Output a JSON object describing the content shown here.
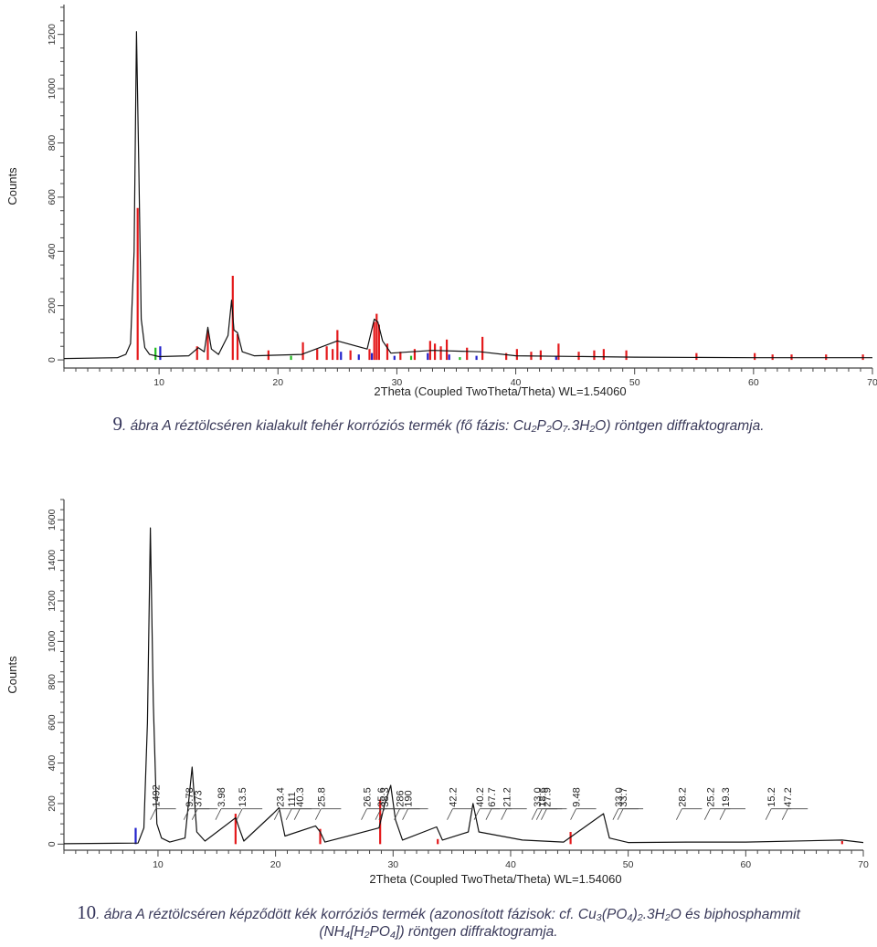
{
  "chart_data": [
    {
      "type": "line",
      "title": "",
      "xlabel": "2Theta (Coupled TwoTheta/Theta) WL=1.54060",
      "ylabel": "Counts",
      "xlim": [
        2,
        70
      ],
      "ylim": [
        -30,
        1310
      ],
      "x_ticks": [
        "10",
        "20",
        "30",
        "40",
        "50",
        "60",
        "70"
      ],
      "y_ticks": [
        "0",
        "200",
        "400",
        "600",
        "800",
        "1000",
        "1200"
      ],
      "grid": false,
      "series": [
        {
          "x": [
            2,
            6.5,
            7.2,
            7.6,
            7.9,
            8.1,
            8.3,
            8.5,
            8.8,
            9.2,
            10,
            12.5,
            13.3,
            13.8,
            14.1,
            14.4,
            15,
            15.8,
            16.1,
            16.3,
            16.6,
            17,
            18,
            22,
            25,
            27.5,
            28.1,
            28.4,
            28.8,
            29.5,
            33,
            37,
            40,
            50,
            60,
            70
          ],
          "y": [
            5,
            8,
            20,
            60,
            400,
            1210,
            700,
            150,
            45,
            20,
            12,
            15,
            45,
            30,
            120,
            40,
            20,
            90,
            220,
            110,
            100,
            30,
            15,
            20,
            70,
            40,
            150,
            140,
            70,
            25,
            35,
            30,
            15,
            10,
            8,
            8
          ]
        }
      ],
      "reference_phases": [
        {
          "color": "#e41a1c",
          "x": [
            8.2,
            13.2,
            14.1,
            16.2,
            16.6,
            19.2,
            22.1,
            23.3,
            24.1,
            24.6,
            25.0,
            26.1,
            27.7,
            28.1,
            28.3,
            28.5,
            29.2,
            30.3,
            31.5,
            32.8,
            33.2,
            33.7,
            34.2,
            35.9,
            37.2,
            39.2,
            40.1,
            41.3,
            42.1,
            43.6,
            45.3,
            46.6,
            47.4,
            49.3,
            55.2,
            60.1,
            61.6,
            63.2,
            66.1,
            69.2
          ],
          "y": [
            560,
            50,
            110,
            310,
            95,
            35,
            65,
            40,
            50,
            40,
            110,
            35,
            40,
            140,
            170,
            130,
            60,
            30,
            40,
            70,
            60,
            50,
            75,
            45,
            85,
            25,
            40,
            30,
            35,
            60,
            30,
            35,
            40,
            35,
            25,
            25,
            20,
            20,
            20,
            20
          ]
        },
        {
          "color": "#2222cc",
          "x": [
            10.1,
            25.3,
            26.8,
            27.9,
            29.8,
            32.6,
            34.4,
            36.7,
            43.4
          ],
          "y": [
            50,
            30,
            20,
            25,
            15,
            25,
            20,
            15,
            15
          ]
        },
        {
          "color": "#22bb22",
          "x": [
            9.7,
            21.1,
            31.2,
            35.3
          ],
          "y": [
            45,
            15,
            15,
            10
          ]
        }
      ]
    },
    {
      "type": "line",
      "title": "",
      "xlabel": "2Theta (Coupled TwoTheta/Theta) WL=1.54060",
      "ylabel": "Counts",
      "xlim": [
        2,
        70
      ],
      "ylim": [
        -30,
        1700
      ],
      "x_ticks": [
        "10",
        "20",
        "30",
        "40",
        "50",
        "60",
        "70"
      ],
      "y_ticks": [
        "0",
        "200",
        "400",
        "600",
        "800",
        "1000",
        "1200",
        "1400",
        "1600"
      ],
      "grid": false,
      "series": [
        {
          "x": [
            2,
            8.3,
            8.8,
            9.1,
            9.35,
            9.6,
            9.9,
            10.3,
            11,
            12.3,
            12.9,
            13.3,
            14,
            16.6,
            16.9,
            17.3,
            19.8,
            20.3,
            20.8,
            23.4,
            23.8,
            24.2,
            28.8,
            29.3,
            29.8,
            30.2,
            30.8,
            33.7,
            34.2,
            36.4,
            36.8,
            37.3,
            41,
            44.5,
            47.9,
            48.4,
            50,
            55,
            60,
            68.2,
            70
          ],
          "y": [
            2,
            5,
            80,
            600,
            1560,
            700,
            100,
            30,
            10,
            30,
            380,
            60,
            15,
            130,
            80,
            15,
            150,
            180,
            40,
            90,
            60,
            10,
            80,
            200,
            290,
            120,
            20,
            85,
            20,
            60,
            200,
            60,
            20,
            10,
            150,
            30,
            8,
            10,
            10,
            20,
            8
          ]
        }
      ],
      "peak_labels": [
        {
          "x": 9.35,
          "label": "1492"
        },
        {
          "x": 12.9,
          "label": "373"
        },
        {
          "x": 12.2,
          "label": "9.78"
        },
        {
          "x": 14.9,
          "label": "3.98"
        },
        {
          "x": 16.7,
          "label": "13.5"
        },
        {
          "x": 19.9,
          "label": "23.4"
        },
        {
          "x": 20.9,
          "label": "111"
        },
        {
          "x": 21.6,
          "label": "40.3"
        },
        {
          "x": 23.4,
          "label": "25.8"
        },
        {
          "x": 27.3,
          "label": "26.5"
        },
        {
          "x": 28.5,
          "label": "35.6"
        },
        {
          "x": 28.8,
          "label": "38.3"
        },
        {
          "x": 30.1,
          "label": "286"
        },
        {
          "x": 30.8,
          "label": "190"
        },
        {
          "x": 34.6,
          "label": "42.2"
        },
        {
          "x": 36.9,
          "label": "40.2"
        },
        {
          "x": 37.9,
          "label": "67.7"
        },
        {
          "x": 39.2,
          "label": "21.2"
        },
        {
          "x": 41.8,
          "label": "33.0"
        },
        {
          "x": 42.2,
          "label": "18.6"
        },
        {
          "x": 42.6,
          "label": "27.9"
        },
        {
          "x": 45.1,
          "label": "9.48"
        },
        {
          "x": 48.7,
          "label": "33.0"
        },
        {
          "x": 49.1,
          "label": "33.7"
        },
        {
          "x": 54.1,
          "label": "28.2"
        },
        {
          "x": 56.5,
          "label": "25.2"
        },
        {
          "x": 57.8,
          "label": "19.3"
        },
        {
          "x": 61.7,
          "label": "15.2"
        },
        {
          "x": 63.1,
          "label": "47.2"
        }
      ],
      "reference_phases": [
        {
          "color": "#e41a1c",
          "x": [
            16.6,
            23.8,
            28.9,
            33.8,
            45.1,
            68.2
          ],
          "y": [
            150,
            75,
            220,
            25,
            60,
            15
          ]
        },
        {
          "color": "#2222cc",
          "x": [
            8.1
          ],
          "y": [
            80
          ]
        }
      ]
    }
  ],
  "captions": {
    "fig9": {
      "number": "9",
      "text": ". ábra A réztölcséren kialakult fehér korróziós termék (fő fázis: Cu₂P₂O₇.3H₂O) röntgen diffraktogramja."
    },
    "fig10": {
      "number": "10",
      "text": ". ábra A réztölcséren képződött kék korróziós termék (azonosított fázisok: cf. Cu₃(PO₄)₂.3H₂O és biphosphammit",
      "text2": "(NH₄[H₂PO₄]) röntgen diffraktogramja."
    }
  }
}
